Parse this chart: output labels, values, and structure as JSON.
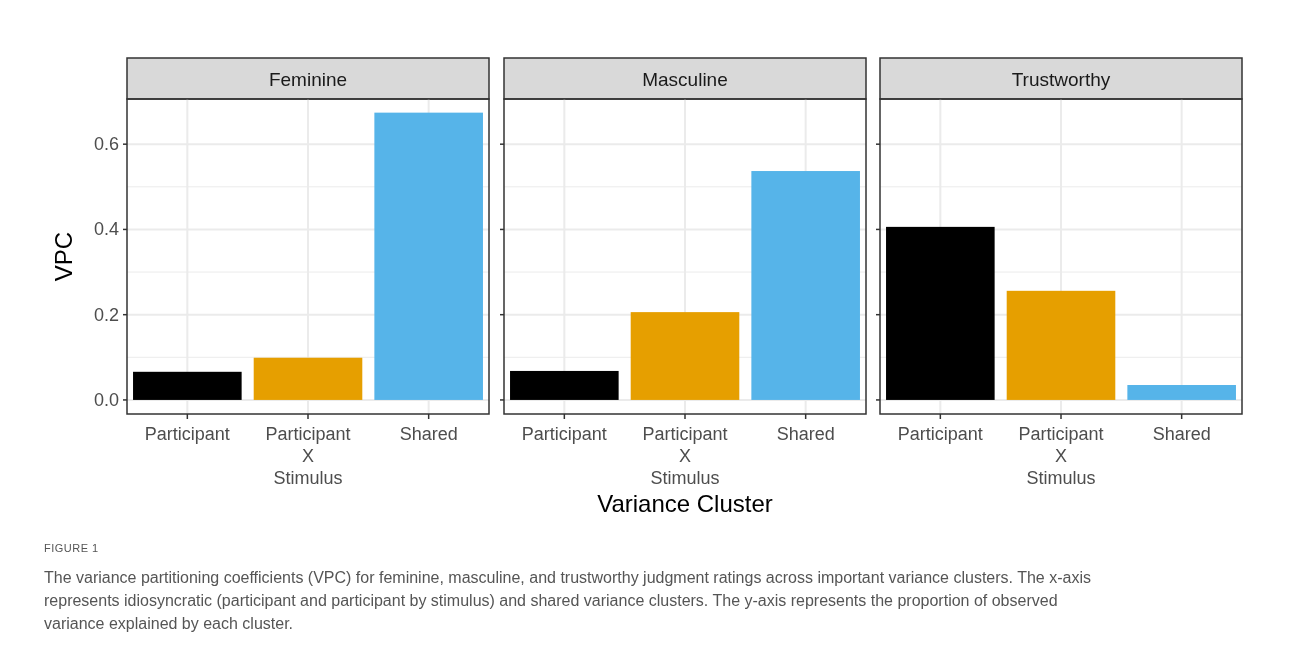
{
  "chart_data": [
    {
      "type": "bar",
      "title": "Feminine",
      "ylabel": "VPC",
      "categories": [
        "Participant",
        "Participant\nX\nStimulus",
        "Shared"
      ],
      "values": [
        0.066,
        0.099,
        0.674
      ],
      "colors": [
        "#000000",
        "#e69f00",
        "#56b4e9"
      ],
      "ylim": [
        -0.033,
        0.706
      ],
      "yticks": [
        {
          "value": 0,
          "label": "0.0"
        },
        {
          "value": 0.2,
          "label": "0.2"
        },
        {
          "value": 0.4,
          "label": "0.4"
        },
        {
          "value": 0.6,
          "label": "0.6"
        }
      ],
      "grid": true,
      "annotations": [
        "FIGURE 1",
        "The variance partitioning coefficients (VPC) for feminine, masculine, and trustworthy judgment ratings across important variance clusters. The x-axis represents idiosyncratic (participant and participant by stimulus) and shared variance clusters. The y-axis represents the proportion of observed variance explained by each cluster."
      ]
    },
    {
      "type": "bar",
      "title": "Masculine",
      "xlabel": "Variance Cluster",
      "categories": [
        "Participant",
        "Participant\nX\nStimulus",
        "Shared"
      ],
      "values": [
        0.068,
        0.206,
        0.537
      ],
      "colors": [
        "#000000",
        "#e69f00",
        "#56b4e9"
      ],
      "ylim": [
        -0.033,
        0.706
      ],
      "yticks": [
        {
          "value": 0,
          "label": null
        },
        {
          "value": 0.2,
          "label": null
        },
        {
          "value": 0.4,
          "label": null
        },
        {
          "value": 0.6,
          "label": null
        }
      ],
      "grid": true,
      "tick_labels": "x"
    },
    {
      "type": "bar",
      "title": "Trustworthy",
      "categories": [
        "Participant",
        "Participant\nX\nStimulus",
        "Shared"
      ],
      "values": [
        0.406,
        0.256,
        0.035
      ],
      "colors": [
        "#000000",
        "#e69f00",
        "#56b4e9"
      ],
      "ylim": [
        -0.033,
        0.706
      ],
      "yticks": [
        {
          "value": 0,
          "label": null
        },
        {
          "value": 0.2,
          "label": null
        },
        {
          "value": 0.4,
          "label": null
        },
        {
          "value": 0.6,
          "label": null
        }
      ],
      "grid": true,
      "tick_labels": "x"
    }
  ]
}
